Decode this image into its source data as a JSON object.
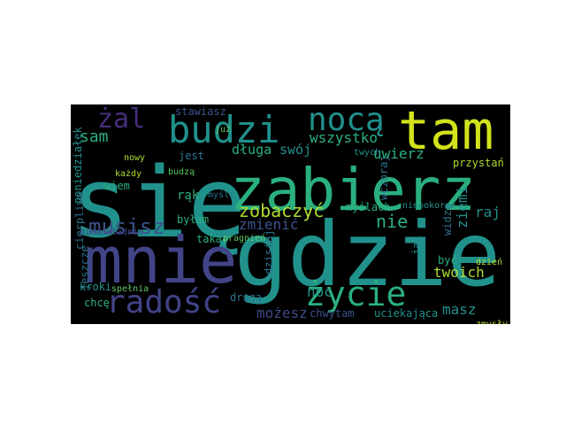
{
  "word_cloud": {
    "background": "#000000",
    "palette": {
      "teal": "#21918c",
      "teal_light": "#2ab07f",
      "blue": "#3b528b",
      "indigo": "#414487",
      "purple": "#472d7b",
      "green": "#5ec962",
      "yellow": "#d2e21b",
      "yellow_green": "#addc30",
      "dark_slate": "#2c728e",
      "dark_purple": "#3e4a89"
    },
    "words": [
      "się",
      "zabierz",
      "gdzie",
      "mnie",
      "tam",
      "budzi",
      "nocą",
      "żal",
      "radość",
      "życie",
      "musisz",
      "zobaczyć",
      "sam",
      "wszystko",
      "długa",
      "swój",
      "uwierz",
      "zmienić",
      "nie",
      "raj",
      "ziemi",
      "twoich",
      "masz",
      "noc",
      "możesz",
      "chwytam",
      "uciekająca",
      "przystań",
      "stawiasz",
      "poniedziałek",
      "jest",
      "już",
      "twych",
      "wczoraj",
      "każdy",
      "budzą",
      "myśli",
      "nowy",
      "wiem",
      "rąk",
      "byłam",
      "taka",
      "pragnień",
      "myślach",
      "niepokorne",
      "widzę",
      "jak",
      "być",
      "dzień",
      "cierpliwa",
      "jeszcze",
      "niedokładnie",
      "kroki",
      "spełnia",
      "chcę",
      "drogą",
      "dzisiaj",
      "zmysły"
    ]
  }
}
